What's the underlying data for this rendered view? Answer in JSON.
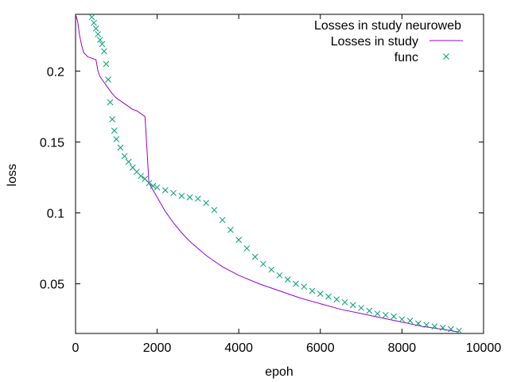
{
  "chart_data": {
    "type": "line",
    "title": "Losses in study neuroweb",
    "xlabel": "epoh",
    "ylabel": "loss",
    "xlim": [
      0,
      10000
    ],
    "ylim": [
      0.015,
      0.24
    ],
    "xticks": [
      0,
      2000,
      4000,
      6000,
      8000,
      10000
    ],
    "yticks": [
      0.05,
      0.1,
      0.15,
      0.2
    ],
    "xtick_labels": [
      "0",
      "2000",
      "4000",
      "6000",
      "8000",
      "10000"
    ],
    "ytick_labels": [
      "0.05",
      "0.1",
      "0.15",
      "0.2"
    ],
    "grid": false,
    "legend_position": "top-right",
    "series": [
      {
        "name": "Losses in study",
        "style": "line",
        "color": "#9400d3",
        "x": [
          0,
          50,
          100,
          150,
          200,
          300,
          400,
          500,
          550,
          600,
          700,
          800,
          900,
          1000,
          1100,
          1200,
          1300,
          1400,
          1500,
          1600,
          1700,
          1720,
          1760,
          1800,
          1900,
          2000,
          2200,
          2400,
          2600,
          2800,
          3000,
          3200,
          3400,
          3600,
          3800,
          4000,
          4500,
          5000,
          5500,
          6000,
          6500,
          7000,
          7500,
          8000,
          8500,
          9000,
          9400
        ],
        "y": [
          0.24,
          0.235,
          0.225,
          0.218,
          0.213,
          0.21,
          0.209,
          0.208,
          0.2,
          0.196,
          0.192,
          0.188,
          0.184,
          0.181,
          0.179,
          0.177,
          0.175,
          0.173,
          0.172,
          0.17,
          0.168,
          0.16,
          0.14,
          0.121,
          0.116,
          0.111,
          0.101,
          0.093,
          0.086,
          0.08,
          0.075,
          0.07,
          0.066,
          0.062,
          0.059,
          0.056,
          0.05,
          0.045,
          0.04,
          0.036,
          0.032,
          0.029,
          0.026,
          0.023,
          0.02,
          0.018,
          0.016
        ]
      },
      {
        "name": "func",
        "style": "points",
        "color": "#009e73",
        "x": [
          400,
          450,
          500,
          550,
          600,
          650,
          700,
          750,
          800,
          850,
          900,
          950,
          1000,
          1100,
          1200,
          1300,
          1400,
          1500,
          1600,
          1700,
          1800,
          1900,
          2000,
          2200,
          2400,
          2600,
          2800,
          3000,
          3200,
          3400,
          3600,
          3800,
          4000,
          4200,
          4400,
          4600,
          4800,
          5000,
          5200,
          5400,
          5600,
          5800,
          6000,
          6200,
          6400,
          6600,
          6800,
          7000,
          7200,
          7400,
          7600,
          7800,
          8000,
          8200,
          8400,
          8600,
          8800,
          9000,
          9200,
          9400
        ],
        "y": [
          0.238,
          0.234,
          0.23,
          0.226,
          0.222,
          0.219,
          0.214,
          0.205,
          0.194,
          0.178,
          0.166,
          0.158,
          0.152,
          0.146,
          0.14,
          0.136,
          0.132,
          0.129,
          0.126,
          0.124,
          0.121,
          0.119,
          0.118,
          0.116,
          0.114,
          0.112,
          0.111,
          0.11,
          0.107,
          0.102,
          0.095,
          0.088,
          0.081,
          0.075,
          0.069,
          0.064,
          0.06,
          0.056,
          0.053,
          0.05,
          0.048,
          0.045,
          0.043,
          0.041,
          0.039,
          0.037,
          0.035,
          0.033,
          0.031,
          0.029,
          0.028,
          0.027,
          0.025,
          0.024,
          0.022,
          0.021,
          0.02,
          0.019,
          0.018,
          0.017
        ]
      }
    ]
  }
}
